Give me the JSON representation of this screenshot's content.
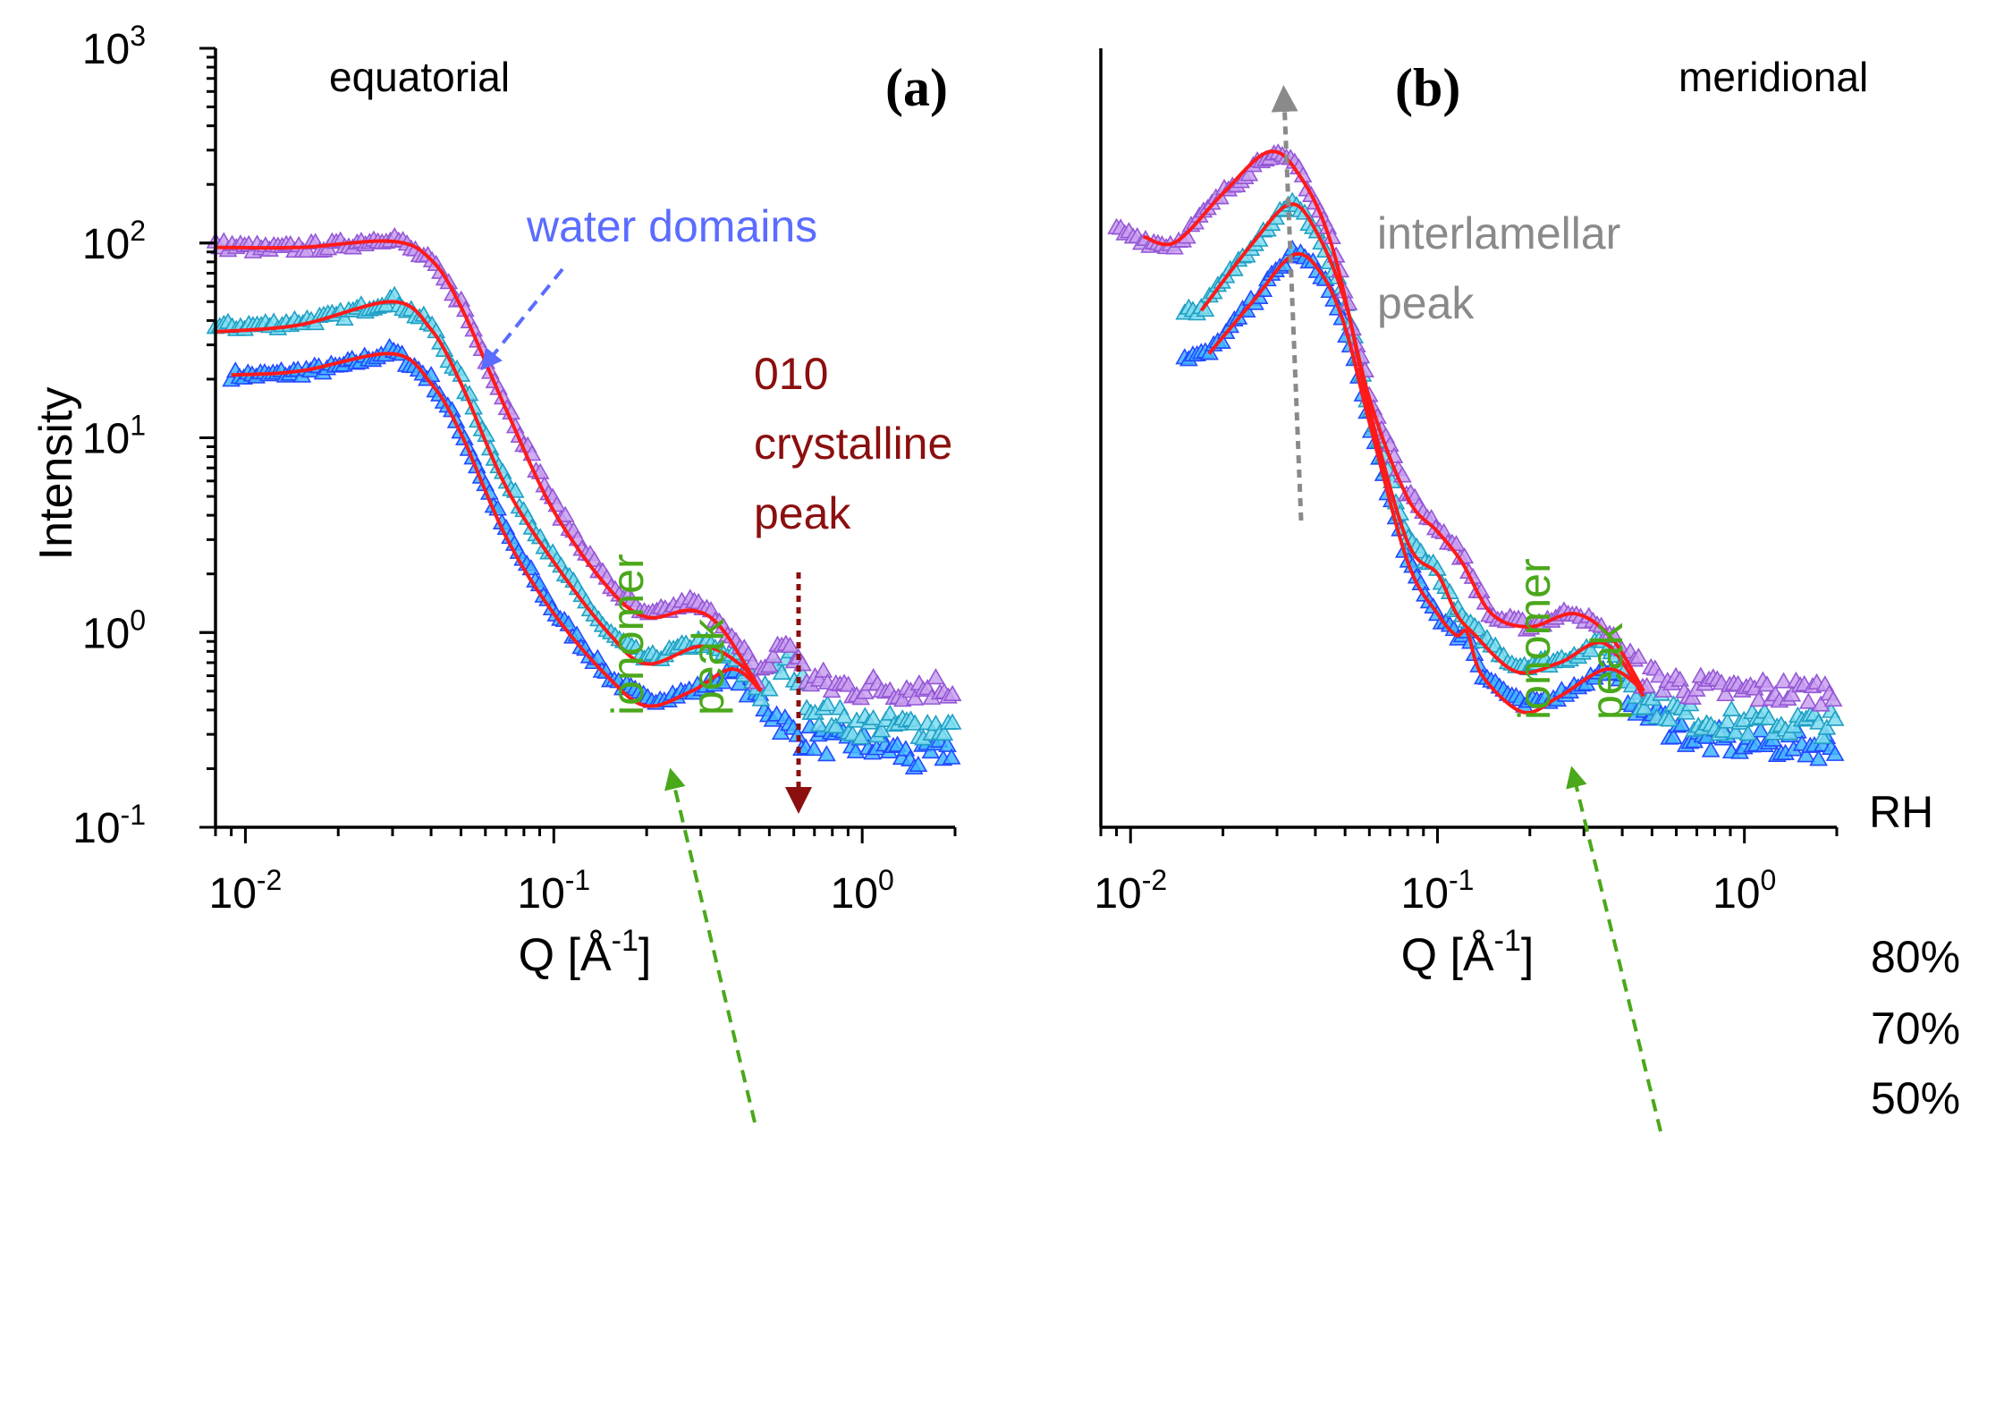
{
  "chart_data": [
    {
      "type": "scatter",
      "panel_label": "(a)",
      "title": "equatorial",
      "xlabel": "Q [Å-1]",
      "xlabel_parts": {
        "main": "Q [Å",
        "sup": "-1",
        "end": "]"
      },
      "ylabel": "Intensity",
      "xscale": "log",
      "yscale": "log",
      "xlim": [
        0.008,
        2.0
      ],
      "ylim": [
        0.1,
        1000
      ],
      "xticks": [
        {
          "value": 0.01,
          "base": "10",
          "exp": "-2"
        },
        {
          "value": 0.1,
          "base": "10",
          "exp": "-1"
        },
        {
          "value": 1,
          "base": "10",
          "exp": "0"
        }
      ],
      "yticks": [
        {
          "value": 0.1,
          "base": "10",
          "exp": "-1"
        },
        {
          "value": 1,
          "base": "10",
          "exp": "0"
        },
        {
          "value": 10,
          "base": "10",
          "exp": "1"
        },
        {
          "value": 100,
          "base": "10",
          "exp": "2"
        },
        {
          "value": 1000,
          "base": "10",
          "exp": "3"
        }
      ],
      "series": [
        {
          "name": "80%",
          "fill": "#c9a0ee",
          "stroke": "#9457d6",
          "points": [
            [
              0.008,
              98
            ],
            [
              0.012,
              93
            ],
            [
              0.02,
              97
            ],
            [
              0.03,
              108
            ],
            [
              0.04,
              80
            ],
            [
              0.05,
              50
            ],
            [
              0.07,
              15
            ],
            [
              0.1,
              4.6
            ],
            [
              0.15,
              1.8
            ],
            [
              0.2,
              1.2
            ],
            [
              0.28,
              1.45
            ],
            [
              0.35,
              1.15
            ],
            [
              0.45,
              0.6
            ],
            [
              0.5,
              0.7
            ],
            [
              0.57,
              0.92
            ],
            [
              0.65,
              0.6
            ],
            [
              0.8,
              0.53
            ],
            [
              1.0,
              0.52
            ],
            [
              1.4,
              0.52
            ],
            [
              2.0,
              0.53
            ]
          ],
          "fit": [
            [
              0.008,
              95
            ],
            [
              0.015,
              95
            ],
            [
              0.03,
              102
            ],
            [
              0.04,
              82
            ],
            [
              0.05,
              47
            ],
            [
              0.07,
              14
            ],
            [
              0.1,
              4.2
            ],
            [
              0.15,
              1.7
            ],
            [
              0.2,
              1.2
            ],
            [
              0.28,
              1.3
            ],
            [
              0.35,
              1.05
            ],
            [
              0.47,
              0.5
            ]
          ]
        },
        {
          "name": "70%",
          "fill": "#7fdcf0",
          "stroke": "#1f9fc4",
          "points": [
            [
              0.008,
              37
            ],
            [
              0.012,
              38
            ],
            [
              0.02,
              42
            ],
            [
              0.03,
              52
            ],
            [
              0.04,
              38
            ],
            [
              0.05,
              20
            ],
            [
              0.07,
              6
            ],
            [
              0.1,
              2.4
            ],
            [
              0.15,
              1.0
            ],
            [
              0.2,
              0.72
            ],
            [
              0.3,
              0.9
            ],
            [
              0.4,
              0.7
            ],
            [
              0.47,
              0.5
            ],
            [
              0.58,
              0.72
            ],
            [
              0.7,
              0.4
            ],
            [
              0.9,
              0.34
            ],
            [
              1.2,
              0.33
            ],
            [
              2.0,
              0.33
            ]
          ],
          "fit": [
            [
              0.008,
              35
            ],
            [
              0.015,
              38
            ],
            [
              0.03,
              50
            ],
            [
              0.04,
              36
            ],
            [
              0.05,
              19
            ],
            [
              0.07,
              5.6
            ],
            [
              0.1,
              2.3
            ],
            [
              0.15,
              1.0
            ],
            [
              0.2,
              0.69
            ],
            [
              0.3,
              0.85
            ],
            [
              0.4,
              0.69
            ],
            [
              0.47,
              0.5
            ]
          ]
        },
        {
          "name": "50%",
          "fill": "#3fb6ff",
          "stroke": "#2448ff",
          "points": [
            [
              0.009,
              21
            ],
            [
              0.012,
              21
            ],
            [
              0.02,
              23
            ],
            [
              0.03,
              28
            ],
            [
              0.04,
              20
            ],
            [
              0.05,
              11
            ],
            [
              0.07,
              3.3
            ],
            [
              0.1,
              1.3
            ],
            [
              0.15,
              0.6
            ],
            [
              0.2,
              0.45
            ],
            [
              0.28,
              0.5
            ],
            [
              0.38,
              0.62
            ],
            [
              0.47,
              0.45
            ],
            [
              0.6,
              0.3
            ],
            [
              0.8,
              0.27
            ],
            [
              1.2,
              0.26
            ],
            [
              1.5,
              0.22
            ],
            [
              2.0,
              0.26
            ]
          ],
          "fit": [
            [
              0.009,
              21
            ],
            [
              0.015,
              22
            ],
            [
              0.03,
              27
            ],
            [
              0.04,
              19
            ],
            [
              0.05,
              10.5
            ],
            [
              0.07,
              3.1
            ],
            [
              0.1,
              1.25
            ],
            [
              0.15,
              0.59
            ],
            [
              0.2,
              0.42
            ],
            [
              0.28,
              0.5
            ],
            [
              0.38,
              0.65
            ],
            [
              0.47,
              0.5
            ]
          ]
        }
      ],
      "annotations": {
        "water": "water domains",
        "crystalline": [
          "010",
          "crystalline",
          "peak"
        ],
        "ionomer": [
          "ionomer",
          "peak"
        ]
      }
    },
    {
      "type": "scatter",
      "panel_label": "(b)",
      "title": "meridional",
      "xlabel": "Q [Å-1]",
      "xlabel_parts": {
        "main": "Q [Å",
        "sup": "-1",
        "end": "]"
      },
      "xscale": "log",
      "yscale": "log",
      "xlim": [
        0.008,
        2.0
      ],
      "ylim": [
        0.1,
        1000
      ],
      "xticks": [
        {
          "value": 0.01,
          "base": "10",
          "exp": "-2"
        },
        {
          "value": 0.1,
          "base": "10",
          "exp": "-1"
        },
        {
          "value": 1,
          "base": "10",
          "exp": "0"
        }
      ],
      "series": [
        {
          "name": "80%",
          "fill": "#c9a0ee",
          "stroke": "#9457d6",
          "points": [
            [
              0.009,
              117
            ],
            [
              0.012,
              100
            ],
            [
              0.014,
              98
            ],
            [
              0.02,
              180
            ],
            [
              0.028,
              290
            ],
            [
              0.035,
              250
            ],
            [
              0.045,
              110
            ],
            [
              0.06,
              17
            ],
            [
              0.08,
              5.2
            ],
            [
              0.1,
              3.5
            ],
            [
              0.12,
              2.5
            ],
            [
              0.15,
              1.2
            ],
            [
              0.2,
              1.08
            ],
            [
              0.28,
              1.3
            ],
            [
              0.37,
              0.95
            ],
            [
              0.47,
              0.6
            ],
            [
              0.7,
              0.52
            ],
            [
              1.0,
              0.5
            ],
            [
              2.0,
              0.5
            ]
          ],
          "fit": [
            [
              0.011,
              108
            ],
            [
              0.014,
              101
            ],
            [
              0.02,
              180
            ],
            [
              0.028,
              293
            ],
            [
              0.035,
              230
            ],
            [
              0.045,
              100
            ],
            [
              0.06,
              16
            ],
            [
              0.08,
              4.9
            ],
            [
              0.1,
              3.3
            ],
            [
              0.12,
              2.3
            ],
            [
              0.15,
              1.25
            ],
            [
              0.2,
              1.07
            ],
            [
              0.28,
              1.25
            ],
            [
              0.37,
              0.93
            ],
            [
              0.47,
              0.5
            ]
          ]
        },
        {
          "name": "70%",
          "fill": "#7fdcf0",
          "stroke": "#1f9fc4",
          "points": [
            [
              0.015,
              46
            ],
            [
              0.017,
              45
            ],
            [
              0.025,
              100
            ],
            [
              0.033,
              165
            ],
            [
              0.04,
              120
            ],
            [
              0.05,
              52
            ],
            [
              0.06,
              14
            ],
            [
              0.08,
              3.0
            ],
            [
              0.1,
              2.1
            ],
            [
              0.115,
              1.3
            ],
            [
              0.13,
              1.05
            ],
            [
              0.18,
              0.68
            ],
            [
              0.25,
              0.72
            ],
            [
              0.35,
              0.9
            ],
            [
              0.47,
              0.45
            ],
            [
              0.7,
              0.36
            ],
            [
              1.0,
              0.34
            ],
            [
              2.0,
              0.34
            ]
          ],
          "fit": [
            [
              0.017,
              45
            ],
            [
              0.025,
              100
            ],
            [
              0.033,
              158
            ],
            [
              0.04,
              117
            ],
            [
              0.05,
              50
            ],
            [
              0.06,
              14
            ],
            [
              0.08,
              2.9
            ],
            [
              0.1,
              2.0
            ],
            [
              0.115,
              1.26
            ],
            [
              0.13,
              1.0
            ],
            [
              0.18,
              0.63
            ],
            [
              0.25,
              0.7
            ],
            [
              0.35,
              0.88
            ],
            [
              0.47,
              0.47
            ]
          ]
        },
        {
          "name": "50%",
          "fill": "#3fb6ff",
          "stroke": "#2448ff",
          "points": [
            [
              0.015,
              26
            ],
            [
              0.018,
              27
            ],
            [
              0.025,
              50
            ],
            [
              0.034,
              92
            ],
            [
              0.042,
              70
            ],
            [
              0.05,
              37
            ],
            [
              0.06,
              12
            ],
            [
              0.08,
              2.3
            ],
            [
              0.1,
              1.25
            ],
            [
              0.115,
              0.97
            ],
            [
              0.125,
              1.0
            ],
            [
              0.14,
              0.62
            ],
            [
              0.19,
              0.42
            ],
            [
              0.25,
              0.48
            ],
            [
              0.36,
              0.65
            ],
            [
              0.47,
              0.4
            ],
            [
              0.7,
              0.28
            ],
            [
              1.0,
              0.27
            ],
            [
              2.0,
              0.26
            ]
          ],
          "fit": [
            [
              0.018,
              27
            ],
            [
              0.025,
              50
            ],
            [
              0.034,
              87
            ],
            [
              0.042,
              69
            ],
            [
              0.05,
              37
            ],
            [
              0.06,
              12
            ],
            [
              0.08,
              2.3
            ],
            [
              0.1,
              1.25
            ],
            [
              0.115,
              0.97
            ],
            [
              0.125,
              1.0
            ],
            [
              0.14,
              0.6
            ],
            [
              0.19,
              0.39
            ],
            [
              0.25,
              0.47
            ],
            [
              0.36,
              0.65
            ],
            [
              0.47,
              0.5
            ]
          ]
        }
      ],
      "annotations": {
        "interlamellar": [
          "interlamellar",
          "peak"
        ],
        "ionomer": [
          "ionomer",
          "peak"
        ]
      }
    }
  ],
  "legend": {
    "title": "RH",
    "labels": [
      "80%",
      "70%",
      "50%"
    ]
  },
  "colors": {
    "fit": "#ff1a1a",
    "water": "#5b6cff",
    "crystalline": "#8b0f0f",
    "ionomer": "#4aa81a",
    "interlamellar": "#8a8a8a",
    "axis": "#000000"
  }
}
